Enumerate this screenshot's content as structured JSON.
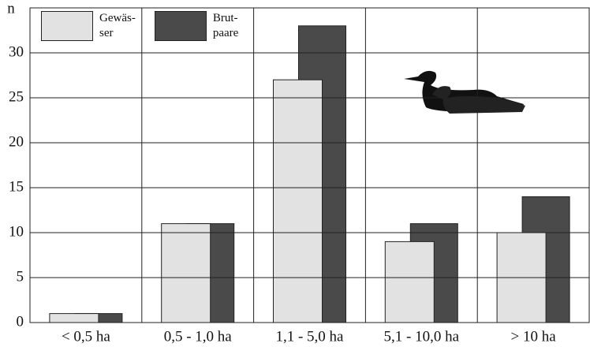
{
  "chart_data": {
    "type": "bar",
    "y_label": "n",
    "categories": [
      "< 0,5 ha",
      "0,5 - 1,0 ha",
      "1,1 - 5,0 ha",
      "5,1 - 10,0 ha",
      "> 10 ha"
    ],
    "series": [
      {
        "name": "Gewäs-\nser",
        "color": "#e2e2e2",
        "values": [
          1,
          11,
          27,
          9,
          10
        ]
      },
      {
        "name": "Brut-\npaare",
        "color": "#4a4a4a",
        "values": [
          1,
          11,
          33,
          11,
          14
        ]
      }
    ],
    "ylim": [
      0,
      35
    ],
    "yticks": [
      0,
      5,
      10,
      15,
      20,
      25,
      30
    ],
    "grid": true
  }
}
